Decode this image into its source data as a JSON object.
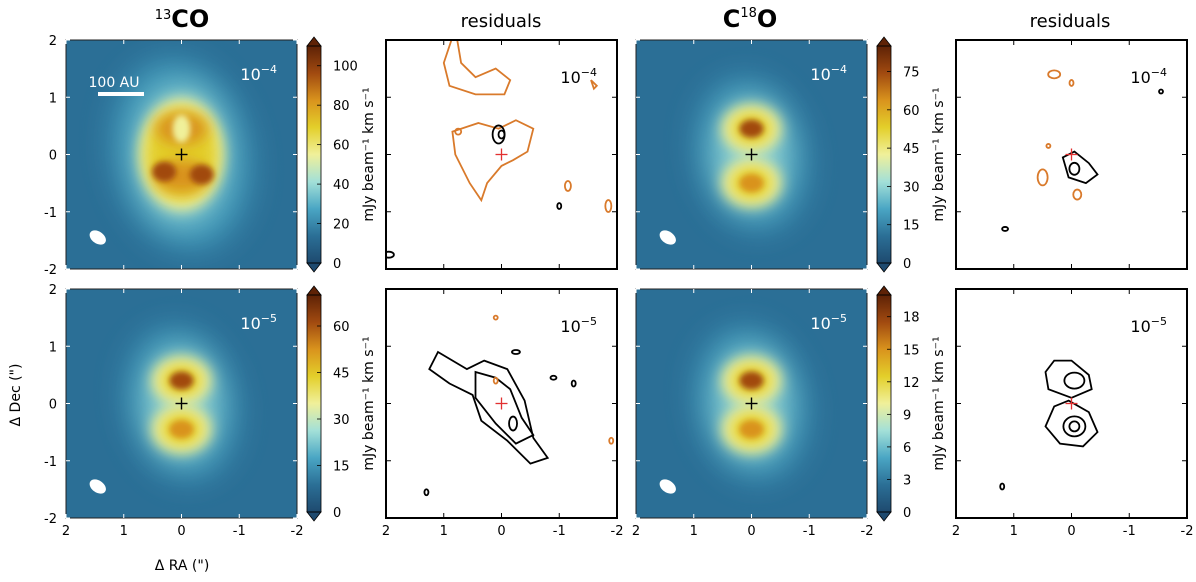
{
  "colors": {
    "colormap": [
      "#1e4a6f",
      "#2b6f96",
      "#4aa6c4",
      "#a3e0d8",
      "#f0f09a",
      "#e3cf2a",
      "#d9931d",
      "#a14a10",
      "#5e2206"
    ],
    "contour_negative": "#d97a2b",
    "contour_positive": "#000000",
    "center_map": "#000000",
    "center_residual": "#e23030",
    "scalebar": "#ffffff"
  },
  "labels": {
    "title_13co_sup": "13",
    "title_13co_main": "CO",
    "title_c18o_main_c": "C",
    "title_c18o_sup": "18",
    "title_c18o_main_o": "O",
    "title_residuals": "residuals",
    "xlabel": "Δ RA (\")",
    "ylabel": "Δ Dec (\")",
    "colorbar_label": "mJy beam⁻¹ km s⁻¹",
    "scalebar": "100 AU",
    "xticks": [
      "2",
      "1",
      "0",
      "-1",
      "-2"
    ],
    "yticks": [
      "2",
      "1",
      "0",
      "-1",
      "-2"
    ]
  },
  "chart_data": [
    {
      "type": "heatmap",
      "molecule": "13CO",
      "row": 0,
      "column": 0,
      "label_base": "10",
      "label_exp": "−4",
      "xlim": [
        2,
        -2
      ],
      "ylim": [
        -2,
        2
      ],
      "lobes": [
        [
          0.0,
          0.45
        ],
        [
          0.0,
          -0.38
        ]
      ],
      "lobe_shape": "ring"
    },
    {
      "type": "heatmap",
      "molecule": "C18O",
      "row": 0,
      "column": 2,
      "label_base": "10",
      "label_exp": "−4",
      "xlim": [
        2,
        -2
      ],
      "ylim": [
        -2,
        2
      ],
      "lobes": [
        [
          0.0,
          0.45
        ],
        [
          0.0,
          -0.5
        ]
      ],
      "lobe_shape": "blob"
    },
    {
      "type": "heatmap",
      "molecule": "13CO",
      "row": 1,
      "column": 0,
      "label_base": "10",
      "label_exp": "−5",
      "xlim": [
        2,
        -2
      ],
      "ylim": [
        -2,
        2
      ],
      "lobes": [
        [
          0.0,
          0.4
        ],
        [
          0.0,
          -0.45
        ]
      ],
      "lobe_shape": "blob"
    },
    {
      "type": "heatmap",
      "molecule": "C18O",
      "row": 1,
      "column": 2,
      "label_base": "10",
      "label_exp": "−5",
      "xlim": [
        2,
        -2
      ],
      "ylim": [
        -2,
        2
      ],
      "lobes": [
        [
          0.0,
          0.4
        ],
        [
          0.0,
          -0.45
        ]
      ],
      "lobe_shape": "blob"
    },
    {
      "type": "colorbar",
      "for_molecule": "13CO",
      "row": 0,
      "min": 0,
      "max": 110,
      "ticks": [
        0,
        20,
        40,
        60,
        80,
        100
      ]
    },
    {
      "type": "colorbar",
      "for_molecule": "C18O",
      "row": 0,
      "min": 0,
      "max": 85,
      "ticks": [
        0,
        15,
        30,
        45,
        60,
        75
      ]
    },
    {
      "type": "colorbar",
      "for_molecule": "13CO",
      "row": 1,
      "min": 0,
      "max": 70,
      "ticks": [
        0,
        15,
        30,
        45,
        60
      ]
    },
    {
      "type": "colorbar",
      "for_molecule": "C18O",
      "row": 1,
      "min": 0,
      "max": 20,
      "ticks": [
        0,
        3,
        6,
        9,
        12,
        15,
        18
      ]
    },
    {
      "type": "residuals",
      "molecule": "13CO",
      "row": 0,
      "column": 1,
      "label_base": "10",
      "label_exp": "−4",
      "has_negative_contours": true,
      "has_positive_contours": true
    },
    {
      "type": "residuals",
      "molecule": "C18O",
      "row": 0,
      "column": 3,
      "label_base": "10",
      "label_exp": "−4",
      "has_negative_contours": true,
      "has_positive_contours": true
    },
    {
      "type": "residuals",
      "molecule": "13CO",
      "row": 1,
      "column": 1,
      "label_base": "10",
      "label_exp": "−5",
      "has_negative_contours": true,
      "has_positive_contours": true
    },
    {
      "type": "residuals",
      "molecule": "C18O",
      "row": 1,
      "column": 3,
      "label_base": "10",
      "label_exp": "−5",
      "has_negative_contours": false,
      "has_positive_contours": true
    }
  ]
}
